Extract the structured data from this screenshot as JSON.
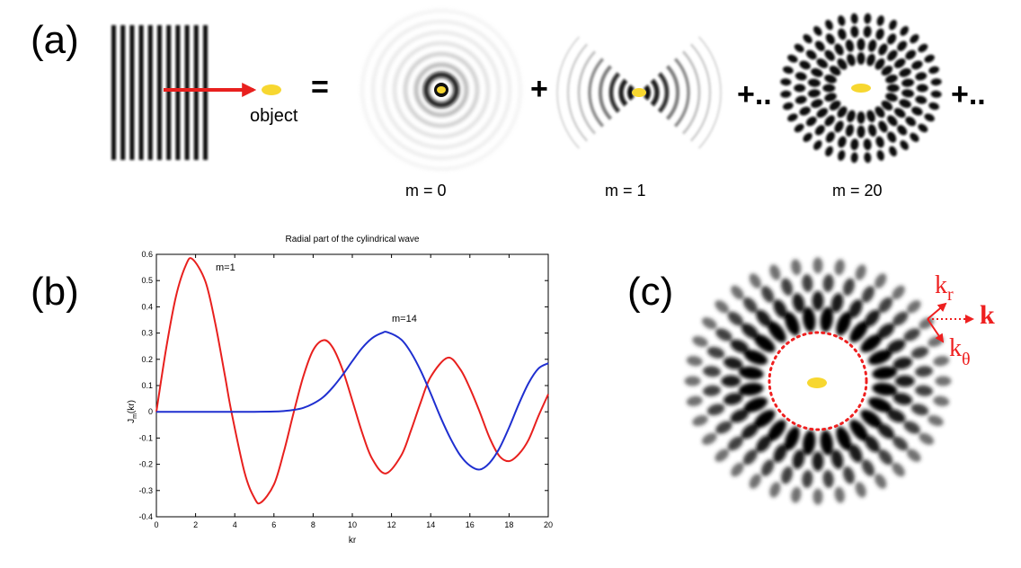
{
  "panel_a": {
    "label": "(a)",
    "object_label": "object",
    "equals": "=",
    "plus1": "+",
    "plus2": "+..",
    "plus3": "+..",
    "mode_labels": [
      "m = 0",
      "m = 1",
      "m = 20"
    ]
  },
  "panel_b": {
    "label": "(b)"
  },
  "panel_c": {
    "label": "(c)",
    "k_r": "k",
    "k_r_sub": "r",
    "k_bold": "k",
    "k_theta": "k",
    "k_theta_sub": "θ"
  },
  "colors": {
    "red": "#e8201e",
    "blue": "#1f2fd0",
    "yellow": "#f7d730",
    "annot_red": "#ee2020"
  },
  "chart_data": {
    "type": "line",
    "title": "Radial part of the cylindrical wave",
    "xlabel": "kr",
    "ylabel": "J",
    "ylabel_sub": "m",
    "ylabel_tail": "(kr)",
    "xlim": [
      0,
      20
    ],
    "ylim": [
      -0.4,
      0.6
    ],
    "xticks": [
      "0",
      "2",
      "4",
      "6",
      "8",
      "10",
      "12",
      "14",
      "16",
      "18",
      "20"
    ],
    "yticks": [
      "-0.4",
      "-0.3",
      "-0.2",
      "-0.1",
      "0",
      "0.1",
      "0.2",
      "0.3",
      "0.4",
      "0.5",
      "0.6"
    ],
    "grid": false,
    "series": [
      {
        "name": "m=1",
        "color": "#e8201e",
        "x": [
          0,
          0.5,
          1,
          1.5,
          1.84,
          2.5,
          3,
          3.5,
          3.83,
          4.5,
          5,
          5.33,
          6,
          6.5,
          7,
          7.5,
          8,
          8.54,
          9,
          9.5,
          10,
          10.5,
          11,
          11.7,
          12.5,
          13,
          13.5,
          14,
          14.86,
          15.5,
          16,
          16.5,
          17,
          17.5,
          18,
          18.5,
          19,
          19.5,
          20
        ],
        "y": [
          0,
          0.242,
          0.44,
          0.558,
          0.582,
          0.497,
          0.339,
          0.137,
          0,
          -0.231,
          -0.328,
          -0.346,
          -0.277,
          -0.154,
          -0.005,
          0.135,
          0.235,
          0.273,
          0.245,
          0.161,
          0.043,
          -0.079,
          -0.177,
          -0.235,
          -0.166,
          -0.07,
          0.038,
          0.133,
          0.206,
          0.163,
          0.09,
          -0.0,
          -0.098,
          -0.168,
          -0.188,
          -0.161,
          -0.106,
          -0.016,
          0.067
        ]
      },
      {
        "name": "m=14",
        "color": "#1f2fd0",
        "x": [
          0,
          2,
          4,
          5,
          6,
          6.5,
          7,
          7.5,
          8,
          8.5,
          9,
          9.5,
          10,
          10.5,
          11,
          11.5,
          11.8,
          12.5,
          13,
          13.5,
          14,
          14.5,
          15,
          15.5,
          16,
          16.5,
          17,
          17.5,
          18,
          18.5,
          19,
          19.5,
          20
        ],
        "y": [
          0,
          0,
          0,
          0.0,
          0.001,
          0.003,
          0.007,
          0.015,
          0.031,
          0.055,
          0.093,
          0.14,
          0.193,
          0.243,
          0.28,
          0.3,
          0.303,
          0.275,
          0.225,
          0.155,
          0.07,
          -0.02,
          -0.1,
          -0.165,
          -0.205,
          -0.22,
          -0.195,
          -0.14,
          -0.06,
          0.03,
          0.11,
          0.165,
          0.185
        ]
      }
    ],
    "annotations": [
      "m=1",
      "m=14"
    ]
  }
}
